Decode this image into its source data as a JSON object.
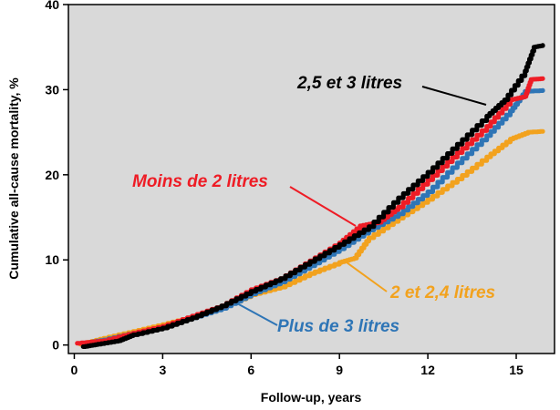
{
  "chart_data": {
    "type": "line",
    "title": "",
    "xlabel": "Follow-up, years",
    "ylabel": "Cumulative  all-cause mortality, %",
    "xlim": [
      -0.2,
      16.3
    ],
    "ylim": [
      -1,
      40
    ],
    "xticks": [
      0,
      3,
      6,
      9,
      12,
      15
    ],
    "yticks": [
      0,
      10,
      20,
      30,
      40
    ],
    "plot_background": "#d9d9d9",
    "grid": false,
    "legend": "inline annotations with leader lines",
    "series": [
      {
        "name": "2,5 et 3 litres",
        "color": "#000000",
        "points": [
          [
            0.3,
            -0.2
          ],
          [
            0.8,
            0.1
          ],
          [
            1.5,
            0.5
          ],
          [
            2,
            1.2
          ],
          [
            3,
            2
          ],
          [
            4,
            3.2
          ],
          [
            5,
            4.6
          ],
          [
            6,
            6.3
          ],
          [
            7,
            7.8
          ],
          [
            8,
            9.8
          ],
          [
            9,
            11.8
          ],
          [
            10,
            13.9
          ],
          [
            11,
            17.3
          ],
          [
            12,
            20.3
          ],
          [
            13,
            23.6
          ],
          [
            14,
            26.9
          ],
          [
            14.6,
            28.8
          ],
          [
            15.3,
            32.2
          ],
          [
            15.6,
            35
          ],
          [
            15.9,
            35.2
          ]
        ]
      },
      {
        "name": "Moins de 2 litres",
        "color": "#ee1c25",
        "points": [
          [
            0.1,
            0.2
          ],
          [
            1,
            0.5
          ],
          [
            2,
            1.4
          ],
          [
            3,
            2.2
          ],
          [
            4,
            3.4
          ],
          [
            5,
            4.6
          ],
          [
            6,
            6.5
          ],
          [
            7,
            7.8
          ],
          [
            8,
            9.9
          ],
          [
            9,
            12
          ],
          [
            9.7,
            14
          ],
          [
            10.3,
            14.4
          ],
          [
            11,
            16.2
          ],
          [
            12,
            19.4
          ],
          [
            13,
            22.6
          ],
          [
            14,
            25.7
          ],
          [
            14.8,
            28.8
          ],
          [
            15.3,
            29.2
          ],
          [
            15.5,
            31.2
          ],
          [
            15.9,
            31.3
          ]
        ]
      },
      {
        "name": "Plus de 3 litres",
        "color": "#2e75b6",
        "points": [
          [
            0.3,
            0.2
          ],
          [
            1,
            0.6
          ],
          [
            2,
            1.4
          ],
          [
            3,
            2.1
          ],
          [
            4,
            3.2
          ],
          [
            5,
            4.3
          ],
          [
            6,
            6
          ],
          [
            7,
            7.4
          ],
          [
            8,
            9.3
          ],
          [
            9,
            11.3
          ],
          [
            10,
            13.5
          ],
          [
            11,
            15.4
          ],
          [
            12,
            18
          ],
          [
            13,
            21.4
          ],
          [
            14,
            24.6
          ],
          [
            14.8,
            27.5
          ],
          [
            15.3,
            29.8
          ],
          [
            15.9,
            29.9
          ]
        ]
      },
      {
        "name": "2 et 2,4 litres",
        "color": "#f2a21e",
        "points": [
          [
            0.2,
            0.1
          ],
          [
            1,
            0.8
          ],
          [
            2,
            1.6
          ],
          [
            3,
            2.4
          ],
          [
            4,
            3.3
          ],
          [
            5,
            4.4
          ],
          [
            6,
            5.9
          ],
          [
            7,
            6.8
          ],
          [
            8,
            8.4
          ],
          [
            9,
            9.7
          ],
          [
            9.5,
            10.2
          ],
          [
            10,
            12.6
          ],
          [
            11,
            14.9
          ],
          [
            12,
            17.1
          ],
          [
            13,
            19.5
          ],
          [
            14,
            22.1
          ],
          [
            14.8,
            24.2
          ],
          [
            15.4,
            25
          ],
          [
            15.9,
            25.1
          ]
        ]
      }
    ],
    "annotations": [
      {
        "text": "2,5 et 3 litres",
        "color": "#000000",
        "series": 0
      },
      {
        "text": "Moins de 2 litres",
        "color": "#ee1c25",
        "series": 1
      },
      {
        "text": "Plus de 3 litres",
        "color": "#2e75b6",
        "series": 2
      },
      {
        "text": "2 et 2,4 litres",
        "color": "#f2a21e",
        "series": 3
      }
    ]
  }
}
